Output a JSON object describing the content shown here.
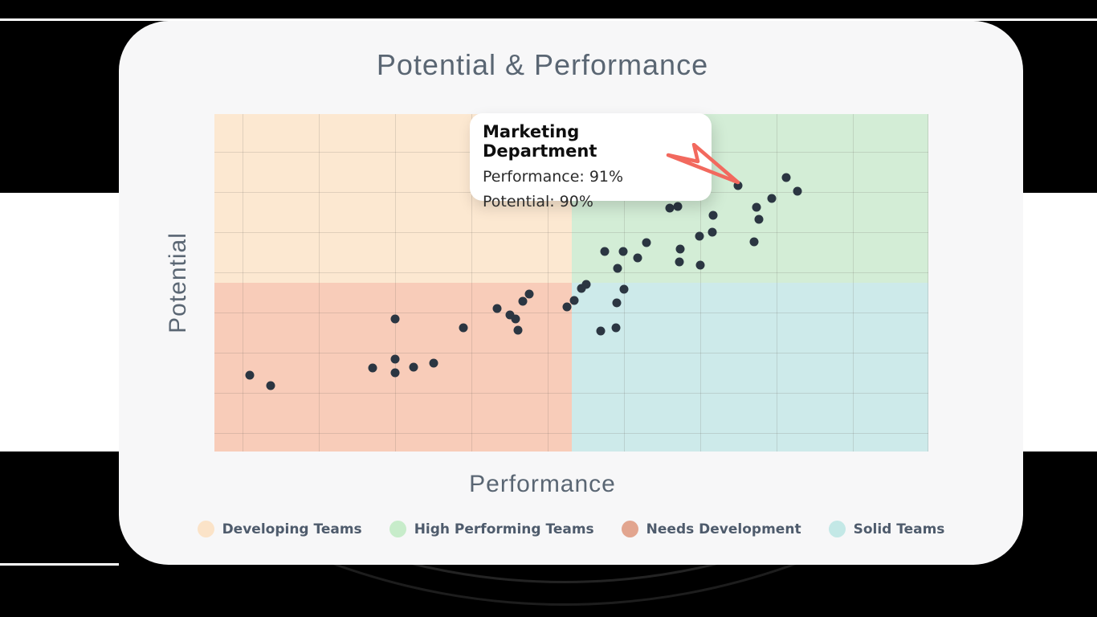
{
  "page": {
    "background_color": "#ffffff",
    "frame_color": "#000000",
    "card_color": "#f7f7f8"
  },
  "chart": {
    "title": "Potential & Performance",
    "x_axis_label": "Performance",
    "y_axis_label": "Potential",
    "point_color": "#2b3642",
    "grid_color": "rgba(100,95,90,0.18)"
  },
  "tooltip": {
    "title": "Marketing Department",
    "lines": [
      "Performance: 91%",
      "Potential: 90%"
    ],
    "arrow_color": "#f2695e"
  },
  "legend": {
    "items": [
      {
        "label": "Developing Teams",
        "color": "#fbe3c8"
      },
      {
        "label": "High Performing Teams",
        "color": "#c7ecca"
      },
      {
        "label": "Needs Development",
        "color": "#e2a58f"
      },
      {
        "label": "Solid Teams",
        "color": "#c3e8e6"
      }
    ]
  },
  "chart_data": {
    "type": "scatter",
    "title": "Potential & Performance",
    "xlabel": "Performance",
    "ylabel": "Potential",
    "axes": {
      "x_range_pct": [
        0,
        100
      ],
      "y_range_pct": [
        0,
        100
      ],
      "tick_labels_visible": false,
      "grid": true,
      "quadrant_split_pct": {
        "x": 50,
        "y": 50
      }
    },
    "quadrants": [
      {
        "name": "Developing Teams",
        "position": "top-left",
        "color": "#fce8d1"
      },
      {
        "name": "High Performing Teams",
        "position": "top-right",
        "color": "#d3edd6"
      },
      {
        "name": "Needs Development",
        "position": "bottom-left",
        "color": "#f8ccb9"
      },
      {
        "name": "Solid Teams",
        "position": "bottom-right",
        "color": "#cdeaea"
      }
    ],
    "highlighted_point": {
      "label": "Marketing Department",
      "performance": 91,
      "potential": 90,
      "plot_x_pct": 73.3,
      "plot_y_pct": 78.8
    },
    "points": [
      [
        73.3,
        78.8
      ],
      [
        80.1,
        81.2
      ],
      [
        81.7,
        77.1
      ],
      [
        78.1,
        75.0
      ],
      [
        75.9,
        72.4
      ],
      [
        76.3,
        68.8
      ],
      [
        63.8,
        72.1
      ],
      [
        64.9,
        72.6
      ],
      [
        69.9,
        70.0
      ],
      [
        69.7,
        65.0
      ],
      [
        67.9,
        63.8
      ],
      [
        75.6,
        62.1
      ],
      [
        60.5,
        61.9
      ],
      [
        54.7,
        59.3
      ],
      [
        57.3,
        59.3
      ],
      [
        59.3,
        57.4
      ],
      [
        65.2,
        60.0
      ],
      [
        65.1,
        56.2
      ],
      [
        68.1,
        55.2
      ],
      [
        56.5,
        54.3
      ],
      [
        51.4,
        48.3
      ],
      [
        52.1,
        49.5
      ],
      [
        50.4,
        44.8
      ],
      [
        49.4,
        42.9
      ],
      [
        57.4,
        48.1
      ],
      [
        56.4,
        44.0
      ],
      [
        54.1,
        35.7
      ],
      [
        56.2,
        36.7
      ],
      [
        4.9,
        22.6
      ],
      [
        7.9,
        19.5
      ],
      [
        22.2,
        24.8
      ],
      [
        25.3,
        39.3
      ],
      [
        25.3,
        27.4
      ],
      [
        25.3,
        23.3
      ],
      [
        27.9,
        25.0
      ],
      [
        30.7,
        26.2
      ],
      [
        34.9,
        36.7
      ],
      [
        39.6,
        42.4
      ],
      [
        41.4,
        40.5
      ],
      [
        42.2,
        39.3
      ],
      [
        42.5,
        36.0
      ],
      [
        43.2,
        44.5
      ],
      [
        44.1,
        46.7
      ]
    ]
  }
}
